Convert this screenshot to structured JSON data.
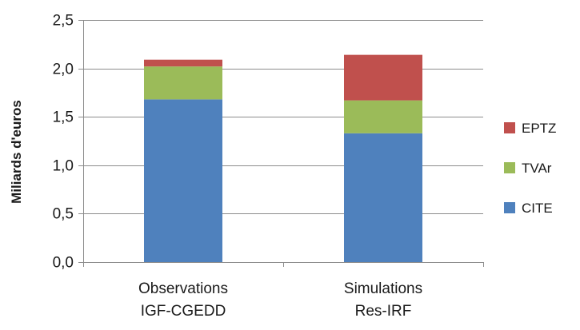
{
  "chart_data": {
    "type": "bar",
    "stacked": true,
    "categories": [
      [
        "Observations",
        "IGF-CGEDD"
      ],
      [
        "Simulations",
        "Res-IRF"
      ]
    ],
    "series": [
      {
        "name": "CITE",
        "values": [
          1.68,
          1.33
        ],
        "color": "#4f81bd"
      },
      {
        "name": "TVAr",
        "values": [
          0.34,
          0.34
        ],
        "color": "#9bbb59"
      },
      {
        "name": "EPTZ",
        "values": [
          0.07,
          0.47
        ],
        "color": "#c0504d"
      }
    ],
    "ylabel": "Miliards d'euros",
    "xlabel": "",
    "title": "",
    "ylim": [
      0,
      2.5
    ],
    "yticks": [
      "0,0",
      "0,5",
      "1,0",
      "1,5",
      "2,0",
      "2,5"
    ],
    "ytick_values": [
      0,
      0.5,
      1.0,
      1.5,
      2.0,
      2.5
    ],
    "grid": true,
    "legend_position": "right",
    "legend_order": [
      "EPTZ",
      "TVAr",
      "CITE"
    ]
  }
}
